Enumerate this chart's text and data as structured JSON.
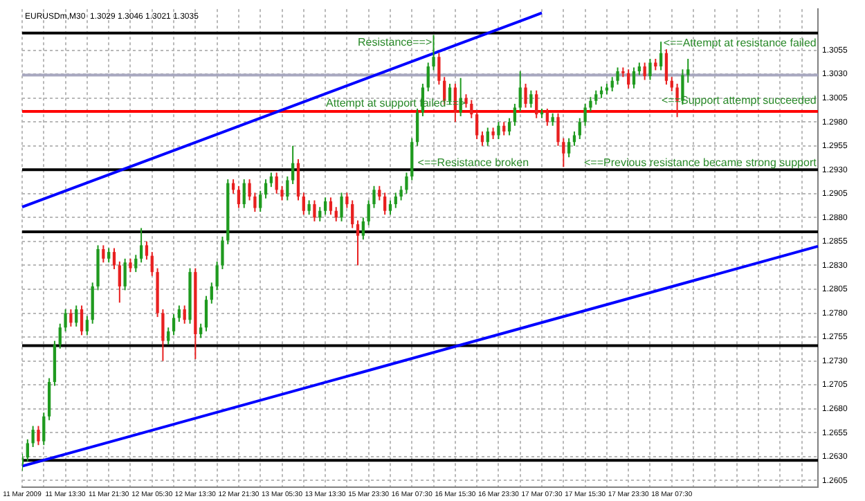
{
  "chart_data": {
    "type": "candlestick",
    "title": "EURUSDm,M30  1.3029 1.3046 1.3021 1.3035",
    "categories": [
      "11 Mar 2009",
      null,
      null,
      null,
      null,
      null,
      null,
      null,
      "11 Mar 13:30",
      null,
      null,
      null,
      null,
      null,
      null,
      null,
      "11 Mar 21:30",
      null,
      null,
      null,
      null,
      null,
      null,
      null,
      "12 Mar 05:30",
      null,
      null,
      null,
      null,
      null,
      null,
      null,
      "12 Mar 13:30",
      null,
      null,
      null,
      null,
      null,
      null,
      null,
      "12 Mar 21:30",
      null,
      null,
      null,
      null,
      null,
      null,
      null,
      "13 Mar 05:30",
      null,
      null,
      null,
      null,
      null,
      null,
      null,
      "13 Mar 13:30",
      null,
      null,
      null,
      null,
      null,
      null,
      null,
      "15 Mar 23:30",
      null,
      null,
      null,
      null,
      null,
      null,
      null,
      "16 Mar 07:30",
      null,
      null,
      null,
      null,
      null,
      null,
      null,
      "16 Mar 15:30",
      null,
      null,
      null,
      null,
      null,
      null,
      null,
      "16 Mar 23:30",
      null,
      null,
      null,
      null,
      null,
      null,
      null,
      "17 Mar 07:30",
      null,
      null,
      null,
      null,
      null,
      null,
      null,
      "17 Mar 15:30",
      null,
      null,
      null,
      null,
      null,
      null,
      null,
      "17 Mar 23:30",
      null,
      null,
      null,
      null,
      null,
      null,
      null,
      "18 Mar 07:30",
      null,
      null,
      null,
      null,
      null,
      null,
      null,
      null,
      null,
      null,
      null,
      null,
      null,
      null,
      null,
      null,
      null,
      null,
      null,
      null,
      null,
      null,
      null,
      null,
      null,
      null,
      null
    ],
    "ohlc": [
      [
        1.2622,
        1.2633,
        1.2615,
        1.2629
      ],
      [
        1.2629,
        1.2648,
        1.2625,
        1.2644
      ],
      [
        1.2644,
        1.2662,
        1.264,
        1.2658
      ],
      [
        1.2658,
        1.2662,
        1.2642,
        1.2646
      ],
      [
        1.2646,
        1.2676,
        1.2642,
        1.2672
      ],
      [
        1.2672,
        1.2712,
        1.2668,
        1.2708
      ],
      [
        1.2708,
        1.2751,
        1.2704,
        1.2747
      ],
      [
        1.2747,
        1.2769,
        1.2743,
        1.2765
      ],
      [
        1.2765,
        1.2784,
        1.2761,
        1.278
      ],
      [
        1.278,
        1.2784,
        1.2766,
        1.277
      ],
      [
        1.277,
        1.2788,
        1.2766,
        1.2784
      ],
      [
        1.2784,
        1.2788,
        1.2757,
        1.2761
      ],
      [
        1.2761,
        1.2777,
        1.2757,
        1.2773
      ],
      [
        1.2773,
        1.2812,
        1.2769,
        1.2808
      ],
      [
        1.2808,
        1.2851,
        1.2804,
        1.2847
      ],
      [
        1.2847,
        1.2851,
        1.2833,
        1.2837
      ],
      [
        1.2837,
        1.2848,
        1.2833,
        1.2844
      ],
      [
        1.2844,
        1.2848,
        1.2826,
        1.283
      ],
      [
        1.283,
        1.2834,
        1.2791,
        1.2808
      ],
      [
        1.2808,
        1.2837,
        1.2804,
        1.2833
      ],
      [
        1.2833,
        1.2837,
        1.2823,
        1.2827
      ],
      [
        1.2827,
        1.2841,
        1.2823,
        1.2837
      ],
      [
        1.2837,
        1.2869,
        1.2833,
        1.2851
      ],
      [
        1.2851,
        1.2855,
        1.2836,
        1.284
      ],
      [
        1.284,
        1.2844,
        1.2819,
        1.2823
      ],
      [
        1.2823,
        1.2827,
        1.2776,
        1.278
      ],
      [
        1.278,
        1.2784,
        1.273,
        1.2751
      ],
      [
        1.2751,
        1.2765,
        1.2747,
        1.2761
      ],
      [
        1.2761,
        1.2779,
        1.2757,
        1.2775
      ],
      [
        1.2775,
        1.2788,
        1.2771,
        1.2784
      ],
      [
        1.2784,
        1.2788,
        1.2769,
        1.2773
      ],
      [
        1.2773,
        1.2827,
        1.2769,
        1.2823
      ],
      [
        1.2823,
        1.2827,
        1.2732,
        1.2758
      ],
      [
        1.2758,
        1.2769,
        1.2754,
        1.2765
      ],
      [
        1.2765,
        1.2798,
        1.2761,
        1.2794
      ],
      [
        1.2794,
        1.2812,
        1.279,
        1.2808
      ],
      [
        1.2808,
        1.2834,
        1.2804,
        1.283
      ],
      [
        1.283,
        1.286,
        1.2826,
        1.2856
      ],
      [
        1.2856,
        1.292,
        1.2852,
        1.2916
      ],
      [
        1.2916,
        1.292,
        1.2905,
        1.2909
      ],
      [
        1.2909,
        1.2913,
        1.289,
        1.2894
      ],
      [
        1.2894,
        1.292,
        1.289,
        1.2916
      ],
      [
        1.2916,
        1.292,
        1.2898,
        1.2902
      ],
      [
        1.2902,
        1.2906,
        1.2886,
        1.289
      ],
      [
        1.289,
        1.2908,
        1.2886,
        1.2904
      ],
      [
        1.2904,
        1.292,
        1.29,
        1.2916
      ],
      [
        1.2916,
        1.2927,
        1.2912,
        1.2923
      ],
      [
        1.2923,
        1.2927,
        1.2905,
        1.2909
      ],
      [
        1.2909,
        1.2913,
        1.2898,
        1.2902
      ],
      [
        1.2902,
        1.2923,
        1.2898,
        1.2919
      ],
      [
        1.2919,
        1.2955,
        1.2915,
        1.2937
      ],
      [
        1.2937,
        1.2941,
        1.2898,
        1.2902
      ],
      [
        1.2902,
        1.2906,
        1.2883,
        1.2887
      ],
      [
        1.2887,
        1.2898,
        1.2883,
        1.2894
      ],
      [
        1.2894,
        1.2898,
        1.2876,
        1.288
      ],
      [
        1.288,
        1.2891,
        1.2876,
        1.2887
      ],
      [
        1.2887,
        1.2901,
        1.2883,
        1.2897
      ],
      [
        1.2897,
        1.2901,
        1.2883,
        1.2887
      ],
      [
        1.2887,
        1.2891,
        1.2876,
        1.288
      ],
      [
        1.288,
        1.2906,
        1.2876,
        1.2902
      ],
      [
        1.2902,
        1.2906,
        1.289,
        1.2894
      ],
      [
        1.2894,
        1.2898,
        1.2869,
        1.2873
      ],
      [
        1.2873,
        1.2877,
        1.283,
        1.2861
      ],
      [
        1.2861,
        1.288,
        1.2857,
        1.2876
      ],
      [
        1.2876,
        1.2898,
        1.2872,
        1.2894
      ],
      [
        1.2894,
        1.2913,
        1.289,
        1.2909
      ],
      [
        1.2909,
        1.2913,
        1.2898,
        1.2902
      ],
      [
        1.2902,
        1.2906,
        1.2883,
        1.2887
      ],
      [
        1.2887,
        1.2898,
        1.2883,
        1.2894
      ],
      [
        1.2894,
        1.2906,
        1.289,
        1.2902
      ],
      [
        1.2902,
        1.2913,
        1.2898,
        1.2909
      ],
      [
        1.2909,
        1.2927,
        1.2905,
        1.2923
      ],
      [
        1.2923,
        1.2963,
        1.2919,
        1.2959
      ],
      [
        1.2959,
        1.2994,
        1.2955,
        1.299
      ],
      [
        1.299,
        1.302,
        1.2986,
        1.3016
      ],
      [
        1.3016,
        1.3042,
        1.3012,
        1.3038
      ],
      [
        1.3038,
        1.3071,
        1.3034,
        1.3048
      ],
      [
        1.3048,
        1.3052,
        1.3019,
        1.3023
      ],
      [
        1.3023,
        1.3027,
        1.2998,
        1.3002
      ],
      [
        1.3002,
        1.302,
        1.2998,
        1.3016
      ],
      [
        1.3016,
        1.302,
        1.298,
        1.299
      ],
      [
        1.299,
        1.3026,
        1.2986,
        1.3005
      ],
      [
        1.3005,
        1.3009,
        1.2995,
        1.2999
      ],
      [
        1.2999,
        1.3003,
        1.2984,
        1.2988
      ],
      [
        1.2988,
        1.2992,
        1.2962,
        1.2966
      ],
      [
        1.2966,
        1.297,
        1.2955,
        1.2959
      ],
      [
        1.2959,
        1.2974,
        1.2955,
        1.297
      ],
      [
        1.297,
        1.2974,
        1.2962,
        1.2966
      ],
      [
        1.2966,
        1.298,
        1.2962,
        1.2976
      ],
      [
        1.2976,
        1.298,
        1.2966,
        1.297
      ],
      [
        1.297,
        1.2984,
        1.2966,
        1.298
      ],
      [
        1.298,
        1.2999,
        1.2976,
        1.2995
      ],
      [
        1.2995,
        1.3033,
        1.2991,
        1.3016
      ],
      [
        1.3016,
        1.302,
        1.2995,
        1.2999
      ],
      [
        1.2999,
        1.3013,
        1.2995,
        1.3009
      ],
      [
        1.3009,
        1.3013,
        1.2984,
        1.2988
      ],
      [
        1.2988,
        1.2994,
        1.2984,
        1.299
      ],
      [
        1.299,
        1.2994,
        1.2976,
        1.298
      ],
      [
        1.298,
        1.2989,
        1.2976,
        1.2985
      ],
      [
        1.2985,
        1.2989,
        1.2955,
        1.2959
      ],
      [
        1.2959,
        1.2963,
        1.2933,
        1.2947
      ],
      [
        1.2947,
        1.2963,
        1.2943,
        1.2959
      ],
      [
        1.2959,
        1.297,
        1.2955,
        1.2966
      ],
      [
        1.2966,
        1.2984,
        1.2962,
        1.298
      ],
      [
        1.298,
        1.2999,
        1.2976,
        1.2995
      ],
      [
        1.2995,
        1.3006,
        1.2991,
        1.3002
      ],
      [
        1.3002,
        1.3013,
        1.2998,
        1.3009
      ],
      [
        1.3009,
        1.3017,
        1.3005,
        1.3013
      ],
      [
        1.3013,
        1.302,
        1.3009,
        1.3016
      ],
      [
        1.3016,
        1.3027,
        1.3012,
        1.3023
      ],
      [
        1.3023,
        1.3037,
        1.3019,
        1.3033
      ],
      [
        1.3033,
        1.3037,
        1.3027,
        1.3031
      ],
      [
        1.3031,
        1.3035,
        1.3015,
        1.3019
      ],
      [
        1.3019,
        1.3037,
        1.3015,
        1.3033
      ],
      [
        1.3033,
        1.3042,
        1.3029,
        1.3038
      ],
      [
        1.3038,
        1.3042,
        1.3024,
        1.3028
      ],
      [
        1.3028,
        1.3046,
        1.3024,
        1.3042
      ],
      [
        1.3042,
        1.3046,
        1.3034,
        1.3038
      ],
      [
        1.3038,
        1.3064,
        1.3034,
        1.3052
      ],
      [
        1.3052,
        1.3056,
        1.3019,
        1.3023
      ],
      [
        1.3023,
        1.3027,
        1.3012,
        1.3016
      ],
      [
        1.3016,
        1.302,
        1.2985,
        1.3002
      ],
      [
        1.3002,
        1.3035,
        1.2998,
        1.3029
      ],
      [
        1.3029,
        1.3046,
        1.3021,
        1.3035
      ],
      null,
      null,
      null,
      null,
      null,
      null,
      null,
      null,
      null,
      null,
      null,
      null,
      null,
      null,
      null,
      null,
      null,
      null,
      null,
      null,
      null,
      null,
      null,
      null
    ],
    "series": [
      {
        "type": "line",
        "color": "#0000ff",
        "values": [
          1.2891,
          null,
          null,
          null,
          null,
          null,
          null,
          null,
          null,
          null,
          null,
          null,
          null,
          null,
          null,
          null,
          null,
          null,
          null,
          null,
          null,
          null,
          null,
          null,
          null,
          null,
          null,
          null,
          null,
          null,
          null,
          null,
          null,
          null,
          null,
          null,
          null,
          null,
          null,
          null,
          null,
          null,
          null,
          null,
          null,
          null,
          null,
          null,
          null,
          null,
          null,
          null,
          null,
          null,
          null,
          null,
          null,
          null,
          null,
          null,
          null,
          null,
          null,
          null,
          null,
          null,
          null,
          null,
          null,
          null,
          null,
          null,
          null,
          null,
          null,
          null,
          null,
          null,
          null,
          null,
          null,
          null,
          null,
          null,
          null,
          null,
          null,
          null,
          null,
          null,
          null,
          null,
          null,
          null,
          null,
          null,
          1.3094,
          null,
          null,
          null,
          null,
          null,
          null,
          null,
          null,
          null,
          null,
          null,
          null,
          null,
          null,
          null,
          null,
          null,
          null,
          null,
          null,
          null,
          null,
          null,
          null,
          null,
          null,
          null,
          null,
          null,
          null,
          null,
          null,
          null,
          null,
          null,
          null,
          null,
          null,
          null,
          null,
          null,
          null,
          null,
          null,
          null,
          null,
          null,
          null,
          null,
          null,
          null
        ]
      },
      {
        "type": "line",
        "color": "#0000ff",
        "values": [
          1.262,
          null,
          null,
          null,
          null,
          null,
          null,
          null,
          null,
          null,
          null,
          null,
          null,
          null,
          null,
          null,
          null,
          null,
          null,
          null,
          null,
          null,
          null,
          null,
          null,
          null,
          null,
          null,
          null,
          null,
          null,
          null,
          null,
          null,
          null,
          null,
          null,
          null,
          null,
          null,
          null,
          null,
          null,
          null,
          null,
          null,
          null,
          null,
          null,
          null,
          null,
          null,
          null,
          null,
          null,
          null,
          null,
          null,
          null,
          null,
          null,
          null,
          null,
          null,
          null,
          null,
          null,
          null,
          null,
          null,
          null,
          null,
          null,
          null,
          null,
          null,
          null,
          null,
          null,
          null,
          null,
          null,
          null,
          null,
          null,
          null,
          null,
          null,
          null,
          null,
          null,
          null,
          null,
          null,
          null,
          null,
          null,
          null,
          null,
          null,
          null,
          null,
          null,
          null,
          null,
          null,
          null,
          null,
          null,
          null,
          null,
          null,
          null,
          null,
          null,
          null,
          null,
          null,
          null,
          null,
          null,
          null,
          null,
          null,
          null,
          null,
          null,
          null,
          null,
          null,
          null,
          null,
          null,
          null,
          null,
          null,
          null,
          null,
          null,
          null,
          null,
          null,
          null,
          null,
          null,
          null,
          null,
          1.285
        ]
      }
    ],
    "ylim": [
      1.2598,
      1.3098
    ],
    "yticks": [
      1.2605,
      {
        "value": 1.263,
        "label": "1.2630"
      },
      1.2655,
      {
        "value": 1.268,
        "label": "1.2680"
      },
      1.2705,
      {
        "value": 1.273,
        "label": "1.2730"
      },
      1.2755,
      {
        "value": 1.278,
        "label": "1.2780"
      },
      1.2805,
      {
        "value": 1.283,
        "label": "1.2830"
      },
      1.2855,
      {
        "value": 1.288,
        "label": "1.2880"
      },
      1.2905,
      {
        "value": 1.293,
        "label": "1.2930"
      },
      1.2955,
      {
        "value": 1.298,
        "label": "1.2980"
      },
      1.3005,
      {
        "value": 1.303,
        "label": "1.3030"
      },
      1.3055
    ],
    "grid": true,
    "ref_lines": [
      {
        "axis": "y",
        "value": 1.3073,
        "color": "#000000"
      },
      {
        "axis": "y",
        "value": 1.3029,
        "color": "#a8a8c0"
      },
      {
        "axis": "y",
        "value": 1.2991,
        "color": "#ff0000"
      },
      {
        "axis": "y",
        "value": 1.293,
        "color": "#000000"
      },
      {
        "axis": "y",
        "value": 1.2865,
        "color": "#000000"
      },
      {
        "axis": "y",
        "value": 1.2746,
        "color": "#000000"
      },
      {
        "axis": "y",
        "value": 1.2626,
        "color": "#000000"
      }
    ],
    "annotations": [
      "Resistance==>",
      "Attempt at support failed==>",
      "<==Resistance broken",
      "<==Previous resistance became strong support",
      "<==Attempt at resistance failed",
      "<==Support attempt succeeded"
    ]
  }
}
